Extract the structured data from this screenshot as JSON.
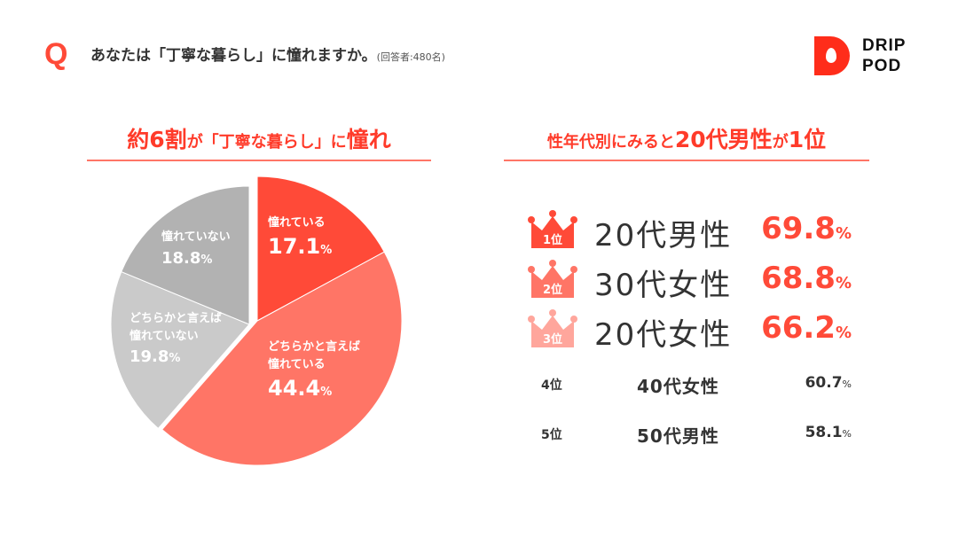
{
  "header": {
    "q_mark": "Q",
    "question": "あなたは「丁寧な暮らし」に憧れますか。",
    "respondents": "(回答者:480名)",
    "logo_line1": "DRIP",
    "logo_line2": "POD",
    "brand_color": "#ff2d1a"
  },
  "left_heading": {
    "part1": "約6割",
    "part2": "が「丁寧な暮らし」に",
    "part3": "憧れ"
  },
  "right_heading": {
    "part1": "性年代別にみると",
    "part2": "20代男性",
    "part3": "が",
    "part4": "1位"
  },
  "chart_data": {
    "type": "pie",
    "start": "top",
    "direction": "clockwise",
    "slices": [
      {
        "label": "憧れている",
        "value": 17.1,
        "display": "17.1",
        "unit": "%",
        "color": "#ff4a38"
      },
      {
        "label_line1": "どちらかと言えば",
        "label": "憧れている",
        "value": 44.4,
        "display": "44.4",
        "unit": "%",
        "color": "#ff7566"
      },
      {
        "label_line1": "どちらかと言えば",
        "label": "憧れていない",
        "value": 19.8,
        "display": "19.8",
        "unit": "%",
        "color": "#cacaca"
      },
      {
        "label": "憧れていない",
        "value": 18.8,
        "display": "18.8",
        "unit": "%",
        "color": "#b2b2b2"
      }
    ]
  },
  "ranking": [
    {
      "rank": "1位",
      "group": "20代男性",
      "value": "69.8",
      "unit": "%",
      "crown_color": "#ff4a38"
    },
    {
      "rank": "2位",
      "group": "30代女性",
      "value": "68.8",
      "unit": "%",
      "crown_color": "#ff7566"
    },
    {
      "rank": "3位",
      "group": "20代女性",
      "value": "66.2",
      "unit": "%",
      "crown_color": "#ffa69c"
    },
    {
      "rank": "4位",
      "group": "40代女性",
      "value": "60.7",
      "unit": "%"
    },
    {
      "rank": "5位",
      "group": "50代男性",
      "value": "58.1",
      "unit": "%"
    }
  ]
}
